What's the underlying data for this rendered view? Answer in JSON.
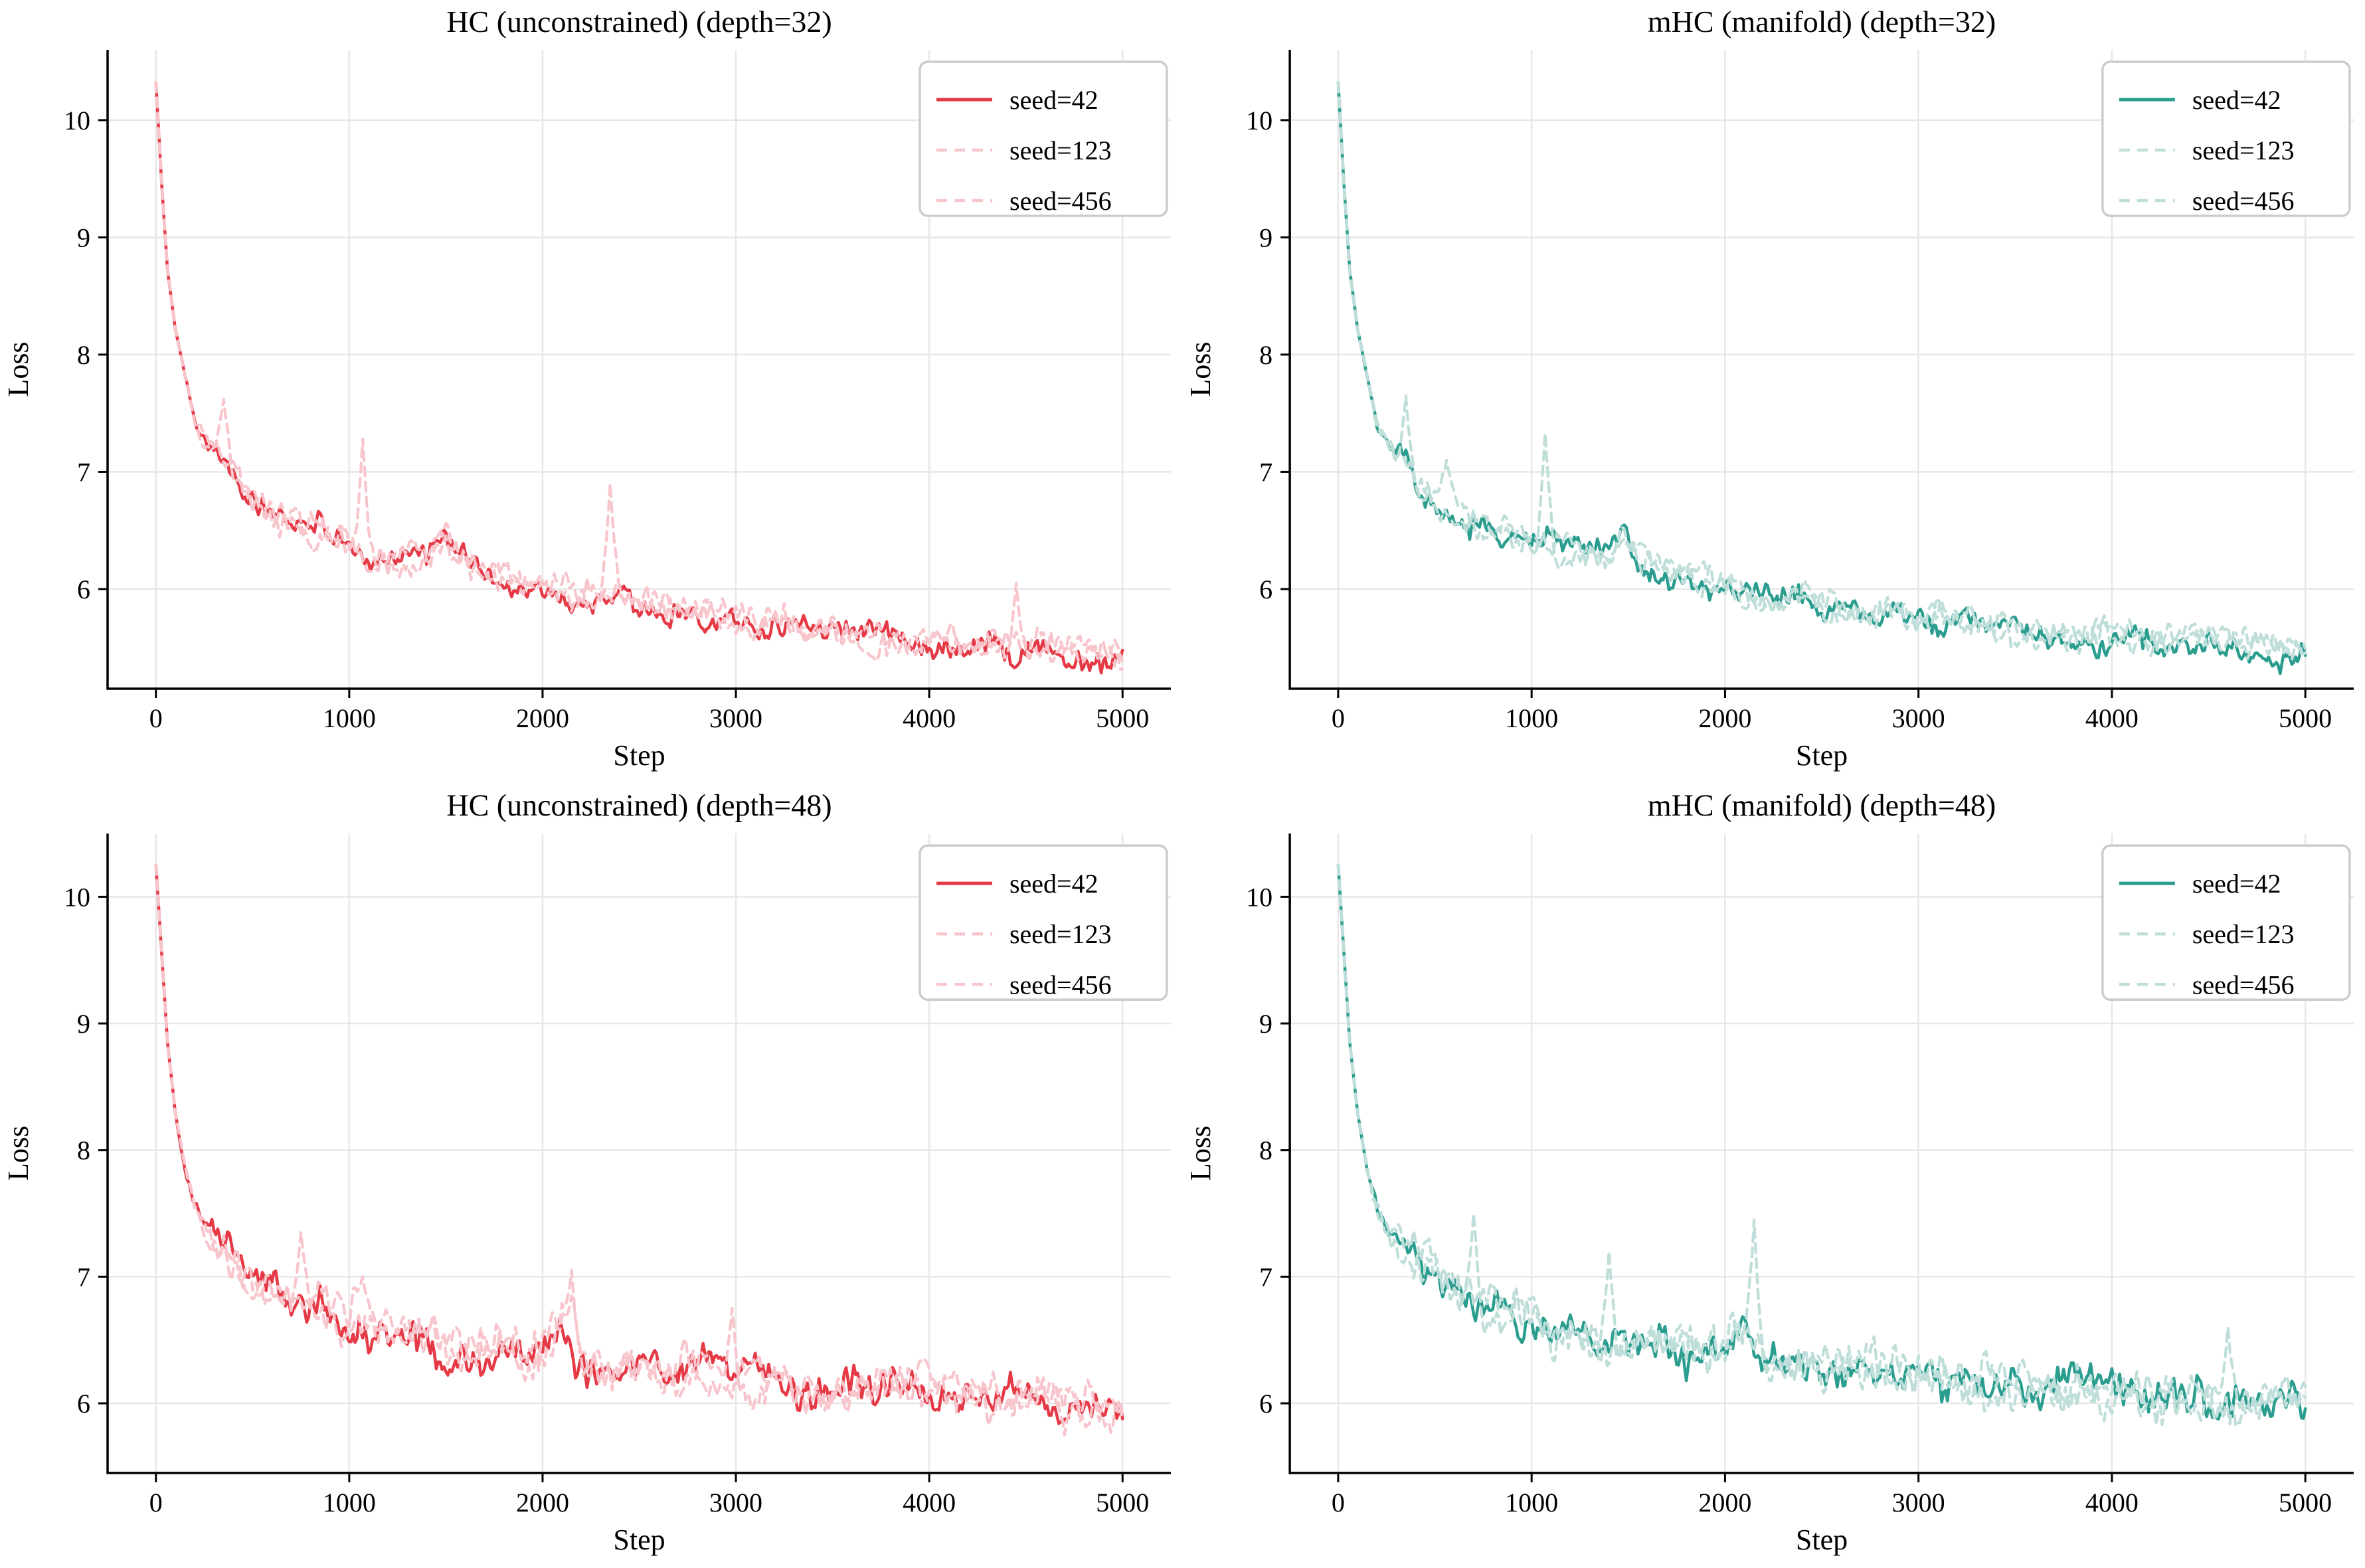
{
  "style": {
    "background": "#ffffff",
    "text_color": "#000000",
    "axis_color": "#000000",
    "grid_color": "#e7e7e7",
    "legend_border_color": "#cccccc"
  },
  "chart_data": [
    {
      "type": "line",
      "title": "HC (unconstrained) (depth=32)",
      "xlabel": "Step",
      "ylabel": "Loss",
      "xlim": [
        -250,
        5250
      ],
      "ylim": [
        5.15,
        10.6
      ],
      "xticks": [
        0,
        1000,
        2000,
        3000,
        4000,
        5000
      ],
      "yticks": [
        6,
        7,
        8,
        9,
        10
      ],
      "grid": true,
      "legend_position": "upper right",
      "colors": {
        "solid": "#e63946",
        "light": "#f7c5cb"
      },
      "anchors": {
        "x": [
          0,
          30,
          60,
          100,
          150,
          200,
          250,
          300,
          350,
          400,
          500,
          600,
          700,
          800,
          900,
          1000,
          1100,
          1200,
          1300,
          1400,
          1480,
          1520,
          1600,
          1800,
          2000,
          2200,
          2400,
          2600,
          2800,
          3000,
          3200,
          3400,
          3600,
          3800,
          4000,
          4200,
          4400,
          4600,
          4800,
          5000
        ],
        "y": [
          10.32,
          9.45,
          8.72,
          8.22,
          7.82,
          7.42,
          7.28,
          7.18,
          7.05,
          6.92,
          6.75,
          6.62,
          6.55,
          6.5,
          6.45,
          6.38,
          6.33,
          6.3,
          6.27,
          6.25,
          6.45,
          6.35,
          6.22,
          6.12,
          6.03,
          5.95,
          5.9,
          5.85,
          5.8,
          5.76,
          5.72,
          5.66,
          5.62,
          5.58,
          5.56,
          5.6,
          5.52,
          5.5,
          5.47,
          5.46
        ]
      },
      "series": [
        {
          "name": "seed=42",
          "style": "solid",
          "noise_seed": 101,
          "noise_amp": 0.085,
          "spikes": []
        },
        {
          "name": "seed=123",
          "style": "dashed",
          "noise_seed": 102,
          "noise_amp": 0.09,
          "spikes": [
            {
              "x": 1070,
              "y": 7.28
            },
            {
              "x": 2350,
              "y": 6.9
            }
          ]
        },
        {
          "name": "seed=456",
          "style": "dashed",
          "noise_seed": 103,
          "noise_amp": 0.09,
          "spikes": [
            {
              "x": 350,
              "y": 7.62
            },
            {
              "x": 4450,
              "y": 6.05
            }
          ]
        }
      ]
    },
    {
      "type": "line",
      "title": "mHC (manifold) (depth=32)",
      "xlabel": "Step",
      "ylabel": "Loss",
      "xlim": [
        -250,
        5250
      ],
      "ylim": [
        5.15,
        10.6
      ],
      "xticks": [
        0,
        1000,
        2000,
        3000,
        4000,
        5000
      ],
      "yticks": [
        6,
        7,
        8,
        9,
        10
      ],
      "grid": true,
      "legend_position": "upper right",
      "colors": {
        "solid": "#2a9d8f",
        "light": "#bfdeda"
      },
      "anchors": {
        "x": [
          0,
          30,
          60,
          100,
          150,
          200,
          250,
          300,
          350,
          400,
          500,
          600,
          700,
          800,
          900,
          1000,
          1100,
          1200,
          1300,
          1400,
          1480,
          1520,
          1600,
          1800,
          2000,
          2200,
          2400,
          2600,
          2800,
          3000,
          3200,
          3400,
          3600,
          3800,
          4000,
          4200,
          4400,
          4600,
          4800,
          5000
        ],
        "y": [
          10.32,
          9.45,
          8.72,
          8.22,
          7.82,
          7.42,
          7.28,
          7.18,
          7.05,
          6.92,
          6.75,
          6.62,
          6.55,
          6.5,
          6.45,
          6.38,
          6.33,
          6.3,
          6.27,
          6.25,
          6.45,
          6.35,
          6.22,
          6.12,
          6.03,
          5.95,
          5.9,
          5.85,
          5.8,
          5.76,
          5.72,
          5.66,
          5.62,
          5.58,
          5.56,
          5.6,
          5.52,
          5.5,
          5.47,
          5.46
        ]
      },
      "series": [
        {
          "name": "seed=42",
          "style": "solid",
          "noise_seed": 201,
          "noise_amp": 0.085,
          "spikes": []
        },
        {
          "name": "seed=123",
          "style": "dashed",
          "noise_seed": 202,
          "noise_amp": 0.09,
          "spikes": [
            {
              "x": 1070,
              "y": 7.33
            }
          ]
        },
        {
          "name": "seed=456",
          "style": "dashed",
          "noise_seed": 203,
          "noise_amp": 0.09,
          "spikes": [
            {
              "x": 350,
              "y": 7.65
            },
            {
              "x": 560,
              "y": 7.1
            }
          ]
        }
      ]
    },
    {
      "type": "line",
      "title": "HC (unconstrained) (depth=48)",
      "xlabel": "Step",
      "ylabel": "Loss",
      "xlim": [
        -250,
        5250
      ],
      "ylim": [
        5.45,
        10.5
      ],
      "xticks": [
        0,
        1000,
        2000,
        3000,
        4000,
        5000
      ],
      "yticks": [
        6,
        7,
        8,
        9,
        10
      ],
      "grid": true,
      "legend_position": "upper right",
      "colors": {
        "solid": "#e63946",
        "light": "#f7c5cb"
      },
      "anchors": {
        "x": [
          0,
          30,
          60,
          100,
          150,
          200,
          250,
          300,
          400,
          500,
          600,
          700,
          800,
          900,
          1000,
          1100,
          1200,
          1400,
          1600,
          1800,
          2000,
          2100,
          2200,
          2400,
          2600,
          2800,
          3000,
          3200,
          3400,
          3600,
          3800,
          4000,
          4200,
          4400,
          4600,
          4800,
          5000
        ],
        "y": [
          10.25,
          9.55,
          8.85,
          8.3,
          7.85,
          7.55,
          7.42,
          7.3,
          7.12,
          7.0,
          6.9,
          6.82,
          6.76,
          6.7,
          6.65,
          6.6,
          6.56,
          6.5,
          6.45,
          6.42,
          6.38,
          6.6,
          6.35,
          6.3,
          6.28,
          6.25,
          6.22,
          6.18,
          6.15,
          6.12,
          6.1,
          6.07,
          6.05,
          6.02,
          6.0,
          5.98,
          5.97
        ]
      },
      "series": [
        {
          "name": "seed=42",
          "style": "solid",
          "noise_seed": 301,
          "noise_amp": 0.11,
          "spikes": []
        },
        {
          "name": "seed=123",
          "style": "dashed",
          "noise_seed": 302,
          "noise_amp": 0.12,
          "spikes": [
            {
              "x": 1070,
              "y": 7.0
            },
            {
              "x": 2150,
              "y": 7.05
            },
            {
              "x": 2980,
              "y": 6.75
            }
          ]
        },
        {
          "name": "seed=456",
          "style": "dashed",
          "noise_seed": 303,
          "noise_amp": 0.12,
          "spikes": [
            {
              "x": 750,
              "y": 7.35
            },
            {
              "x": 2150,
              "y": 6.85
            },
            {
              "x": 4700,
              "y": 5.75
            }
          ]
        }
      ]
    },
    {
      "type": "line",
      "title": "mHC (manifold) (depth=48)",
      "xlabel": "Step",
      "ylabel": "Loss",
      "xlim": [
        -250,
        5250
      ],
      "ylim": [
        5.45,
        10.5
      ],
      "xticks": [
        0,
        1000,
        2000,
        3000,
        4000,
        5000
      ],
      "yticks": [
        6,
        7,
        8,
        9,
        10
      ],
      "grid": true,
      "legend_position": "upper right",
      "colors": {
        "solid": "#2a9d8f",
        "light": "#bfdeda"
      },
      "anchors": {
        "x": [
          0,
          30,
          60,
          100,
          150,
          200,
          250,
          300,
          400,
          500,
          600,
          700,
          800,
          900,
          1000,
          1100,
          1200,
          1400,
          1600,
          1800,
          2000,
          2100,
          2200,
          2400,
          2600,
          2800,
          3000,
          3200,
          3400,
          3600,
          3800,
          4000,
          4200,
          4400,
          4600,
          4800,
          5000
        ],
        "y": [
          10.25,
          9.55,
          8.85,
          8.3,
          7.85,
          7.55,
          7.42,
          7.3,
          7.12,
          7.0,
          6.9,
          6.82,
          6.76,
          6.7,
          6.65,
          6.6,
          6.56,
          6.5,
          6.45,
          6.42,
          6.38,
          6.6,
          6.35,
          6.3,
          6.28,
          6.25,
          6.22,
          6.18,
          6.15,
          6.12,
          6.1,
          6.07,
          6.05,
          6.02,
          6.0,
          5.98,
          5.97
        ]
      },
      "series": [
        {
          "name": "seed=42",
          "style": "solid",
          "noise_seed": 401,
          "noise_amp": 0.11,
          "spikes": []
        },
        {
          "name": "seed=123",
          "style": "dashed",
          "noise_seed": 402,
          "noise_amp": 0.12,
          "spikes": [
            {
              "x": 1400,
              "y": 7.2
            },
            {
              "x": 2150,
              "y": 7.45
            }
          ]
        },
        {
          "name": "seed=456",
          "style": "dashed",
          "noise_seed": 403,
          "noise_amp": 0.12,
          "spikes": [
            {
              "x": 700,
              "y": 7.5
            },
            {
              "x": 4600,
              "y": 6.6
            }
          ]
        }
      ]
    }
  ]
}
